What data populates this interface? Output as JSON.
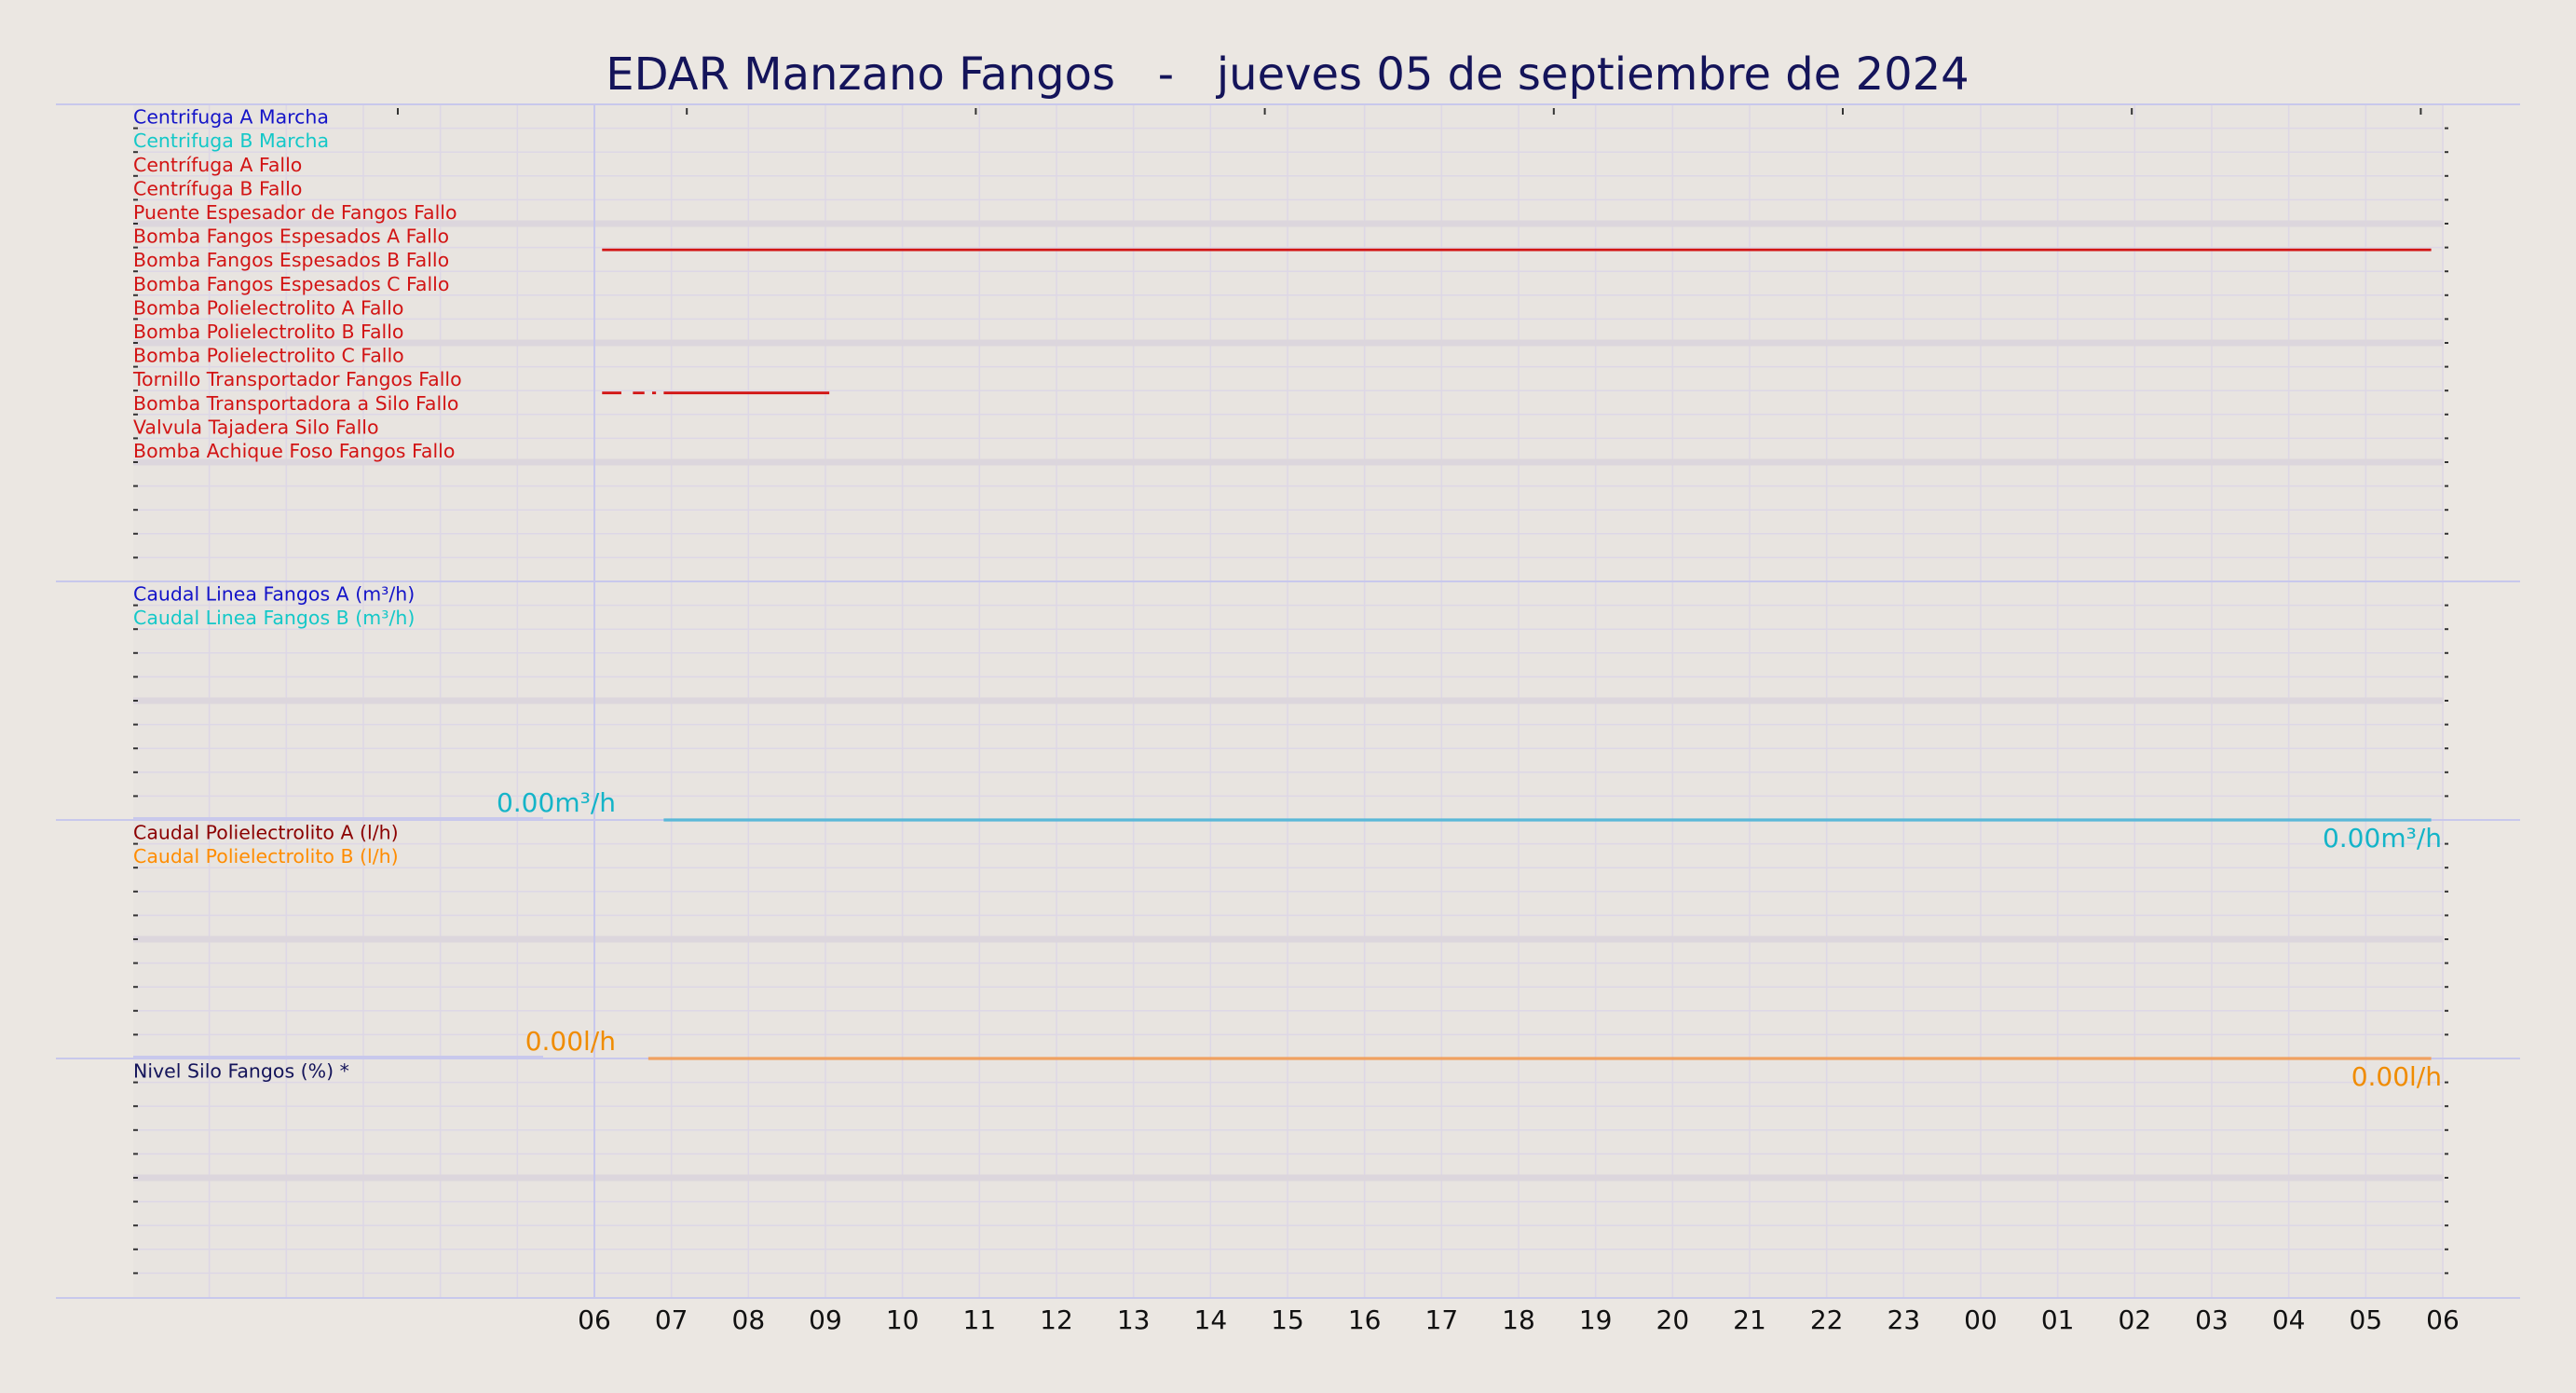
{
  "page": {
    "title": "EDAR Manzano Fangos   -   jueves 05 de septiembre de 2024"
  },
  "chart_data": {
    "type": "line",
    "title": "EDAR Manzano Fangos   -   jueves 05 de septiembre de 2024",
    "x_tick_labels": [
      "06",
      "07",
      "08",
      "09",
      "10",
      "11",
      "12",
      "13",
      "14",
      "15",
      "16",
      "17",
      "18",
      "19",
      "20",
      "21",
      "22",
      "23",
      "00",
      "01",
      "02",
      "03",
      "04",
      "05",
      "06"
    ],
    "x_range_hours": [
      0,
      24
    ],
    "grid": true,
    "panels": [
      {
        "type": "status",
        "series": [
          {
            "name": "Centrifuga A Marcha",
            "color": "#1414c8",
            "segments": []
          },
          {
            "name": "Centrifuga B Marcha",
            "color": "#14c8c8",
            "segments": []
          },
          {
            "name": "Centrífuga A Fallo",
            "color": "#d21414",
            "segments": []
          },
          {
            "name": "Centrífuga B Fallo",
            "color": "#d21414",
            "segments": []
          },
          {
            "name": "Puente Espesador de Fangos Fallo",
            "color": "#d21414",
            "segments": []
          },
          {
            "name": "Bomba Fangos Espesados A Fallo",
            "color": "#d21414",
            "segments": [
              [
                0.1,
                23.85
              ]
            ]
          },
          {
            "name": "Bomba Fangos Espesados B Fallo",
            "color": "#d21414",
            "segments": []
          },
          {
            "name": "Bomba Fangos Espesados C Fallo",
            "color": "#d21414",
            "segments": []
          },
          {
            "name": "Bomba Polielectrolito A Fallo",
            "color": "#d21414",
            "segments": []
          },
          {
            "name": "Bomba Polielectrolito B Fallo",
            "color": "#d21414",
            "segments": []
          },
          {
            "name": "Bomba Polielectrolito C Fallo",
            "color": "#d21414",
            "segments": []
          },
          {
            "name": "Tornillo Transportador Fangos Fallo",
            "color": "#d21414",
            "segments": [
              [
                0.1,
                0.35
              ],
              [
                0.5,
                0.65
              ],
              [
                0.75,
                0.8
              ],
              [
                0.9,
                3.05
              ]
            ]
          },
          {
            "name": "Bomba Transportadora a Silo Fallo",
            "color": "#d21414",
            "segments": []
          },
          {
            "name": "Valvula Tajadera Silo Fallo",
            "color": "#d21414",
            "segments": []
          },
          {
            "name": "Bomba Achique Foso Fangos Fallo",
            "color": "#d21414",
            "segments": []
          }
        ]
      },
      {
        "type": "analog",
        "series": [
          {
            "name": "Caudal Linea Fangos A (m³/h)",
            "color": "#1414c8",
            "segments": []
          },
          {
            "name": "Caudal Linea Fangos B (m³/h)",
            "color": "#14c8c8",
            "segments": [
              [
                0.9,
                23.85
              ]
            ]
          }
        ],
        "start_label": "0.00m³/h",
        "end_label": "0.00m³/h",
        "label_color": "#14b4c8",
        "line_color": "#5ab8d8"
      },
      {
        "type": "analog",
        "series": [
          {
            "name": "Caudal Polielectrolito A (l/h)",
            "color": "#8b0000",
            "segments": []
          },
          {
            "name": "Caudal Polielectrolito B (l/h)",
            "color": "#ff8c00",
            "segments": [
              [
                0.7,
                23.85
              ]
            ]
          }
        ],
        "start_label": "0.00l/h",
        "end_label": "0.00l/h",
        "label_color": "#f08c00",
        "line_color": "#f0a060"
      },
      {
        "type": "analog",
        "series": [
          {
            "name": "Nivel Silo Fangos (%) *",
            "color": "#14145a",
            "segments": []
          }
        ]
      }
    ]
  },
  "colors": {
    "background": "#ebe7e2",
    "title": "#14145a",
    "grid": "#ddd7e6",
    "divider": "#c8c8ec"
  }
}
